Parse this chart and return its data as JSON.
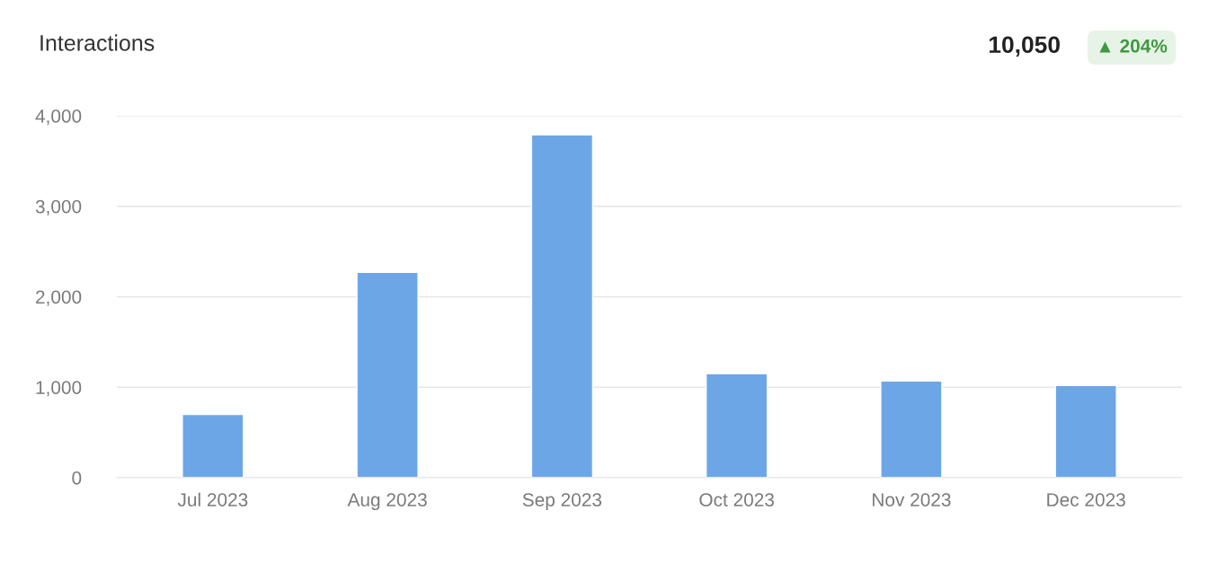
{
  "chart_data": {
    "type": "bar",
    "title": "Interactions",
    "annotations": [
      "10,050",
      "▲ 204%"
    ],
    "categories": [
      "Jul 2023",
      "Aug 2023",
      "Sep 2023",
      "Oct 2023",
      "Nov 2023",
      "Dec 2023"
    ],
    "values": [
      700,
      2270,
      3790,
      1150,
      1070,
      1020
    ],
    "color": "#6ca6e6",
    "ylim": [
      0,
      4000
    ],
    "yticks": [
      {
        "value": 0,
        "label": "0"
      },
      {
        "value": 1000,
        "label": "1,000"
      },
      {
        "value": 2000,
        "label": "2,000"
      },
      {
        "value": 3000,
        "label": "3,000"
      },
      {
        "value": 4000,
        "label": "4,000"
      }
    ],
    "grid": "y"
  }
}
